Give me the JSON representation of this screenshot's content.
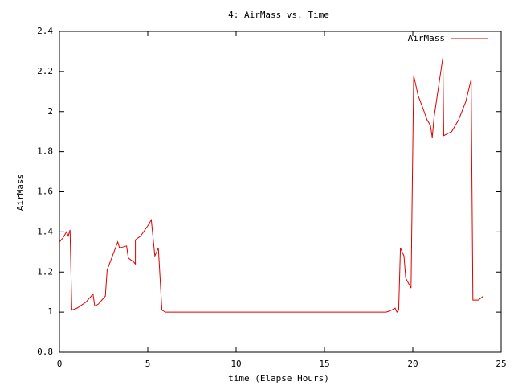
{
  "chart_data": {
    "type": "line",
    "title": "4: AirMass vs. Time",
    "x_label": "time (Elapse Hours)",
    "y_label": "AirMass",
    "x": [
      0,
      0.2,
      0.4,
      0.5,
      0.6,
      0.7,
      1,
      1.5,
      1.9,
      2,
      2.2,
      2.6,
      2.7,
      3.0,
      3.3,
      3.4,
      3.8,
      3.9,
      4.2,
      4.3,
      4.3,
      4.6,
      5.0,
      5.2,
      5.4,
      5.6,
      5.8,
      6,
      18.5,
      18.8,
      19.0,
      19.1,
      19.2,
      19.3,
      19.5,
      19.6,
      19.9,
      20.05,
      20.3,
      20.6,
      20.8,
      21.0,
      21.1,
      21.2,
      21.5,
      21.7,
      21.75,
      22.2,
      22.6,
      23.0,
      23.3,
      23.4,
      23.7,
      24
    ],
    "series": [
      {
        "name": "AirMass",
        "color": "#dd0000",
        "values": [
          1.35,
          1.37,
          1.4,
          1.38,
          1.41,
          1.01,
          1.02,
          1.05,
          1.09,
          1.03,
          1.04,
          1.08,
          1.21,
          1.28,
          1.35,
          1.32,
          1.33,
          1.27,
          1.25,
          1.24,
          1.36,
          1.38,
          1.43,
          1.46,
          1.28,
          1.32,
          1.01,
          1.0,
          1.0,
          1.01,
          1.02,
          1.0,
          1.01,
          1.32,
          1.28,
          1.17,
          1.12,
          2.18,
          2.08,
          2.01,
          1.96,
          1.93,
          1.87,
          1.97,
          2.15,
          2.27,
          1.88,
          1.9,
          1.96,
          2.05,
          2.16,
          1.06,
          1.06,
          1.08
        ]
      }
    ],
    "xlim": [
      0,
      25
    ],
    "xticks": [
      0,
      5,
      10,
      15,
      20,
      25
    ],
    "ylim": [
      0.8,
      2.4
    ],
    "yticks": [
      0.8,
      1,
      1.2,
      1.4,
      1.6,
      1.8,
      2,
      2.2,
      2.4
    ],
    "legend": "top-right",
    "grid": false
  }
}
